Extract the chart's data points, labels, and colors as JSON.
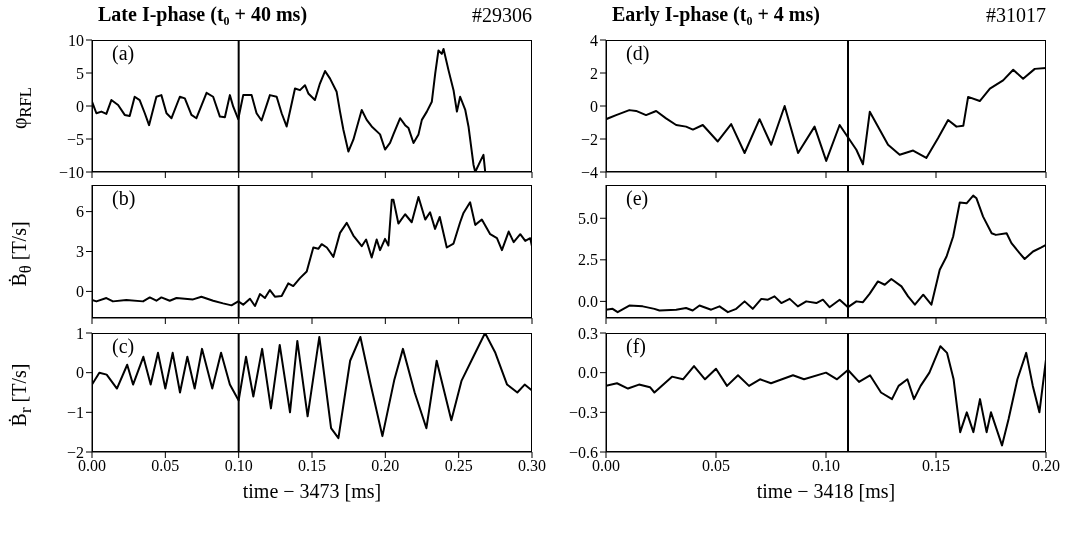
{
  "chart_data": [
    {
      "type": "line",
      "title": "Late I-phase (t₀ + 40 ms)",
      "annotations": [
        "(a)",
        "#29306"
      ],
      "ylabel": "φ$_{RFL}$",
      "tick_labels": "y",
      "xlim": [
        0,
        0.3
      ],
      "xticks": [
        0,
        0.05,
        0.1,
        0.15,
        0.2,
        0.25,
        0.3
      ],
      "ylim": [
        -10,
        10
      ],
      "yticks": [
        {
          "value": -10,
          "label": "−10"
        },
        {
          "value": -5,
          "label": "−5"
        },
        0,
        5,
        10
      ],
      "ref_lines": [
        {
          "axis": "x",
          "value": 0.1,
          "color": "#000000"
        }
      ],
      "x": [
        0,
        0.003,
        0.0064,
        0.0098,
        0.0132,
        0.0178,
        0.0223,
        0.0257,
        0.0291,
        0.0325,
        0.036,
        0.0389,
        0.0439,
        0.0473,
        0.0508,
        0.0542,
        0.0599,
        0.0633,
        0.0678,
        0.0712,
        0.0781,
        0.0826,
        0.0872,
        0.0906,
        0.094,
        0.0963,
        0.0997,
        0.1031,
        0.1088,
        0.1122,
        0.1156,
        0.1213,
        0.1259,
        0.1293,
        0.1327,
        0.1384,
        0.1418,
        0.1452,
        0.1475,
        0.152,
        0.1554,
        0.1589,
        0.1623,
        0.1668,
        0.1691,
        0.1714,
        0.1748,
        0.1782,
        0.1805,
        0.1839,
        0.1873,
        0.1907,
        0.1964,
        0.1998,
        0.2032,
        0.2055,
        0.2101,
        0.2135,
        0.2158,
        0.2192,
        0.2226,
        0.2249,
        0.2283,
        0.2317,
        0.234,
        0.2362,
        0.2385,
        0.2397,
        0.2431,
        0.2465,
        0.2488,
        0.251,
        0.2545,
        0.2567,
        0.2601,
        0.2613,
        0.2647,
        0.2669,
        0.2681
      ],
      "series": [
        {
          "color": "#000000",
          "values": [
            0.65,
            -1.1,
            -0.85,
            -1.2,
            0.9,
            0.15,
            -1.35,
            -1.5,
            1.4,
            0.9,
            -1.1,
            -2.9,
            1.4,
            1.65,
            -1.1,
            -1.85,
            1.4,
            1.15,
            -1.35,
            -1.85,
            2.0,
            1.4,
            -1.6,
            -1.7,
            1.65,
            -0.1,
            -2.0,
            1.65,
            1.65,
            -1.1,
            -2.2,
            1.65,
            1.4,
            -1.1,
            -3.1,
            2.65,
            2.4,
            3.15,
            1.9,
            0.9,
            3.4,
            5.3,
            4.15,
            2.15,
            -0.85,
            -3.6,
            -6.9,
            -5.1,
            -3.3,
            -0.6,
            -2.1,
            -3.1,
            -4.3,
            -6.6,
            -5.6,
            -4.3,
            -1.85,
            -2.9,
            -3.35,
            -5.6,
            -4.3,
            -2.1,
            -0.85,
            0.65,
            4.9,
            8.4,
            7.9,
            8.65,
            5.4,
            2.4,
            -0.85,
            1.4,
            -0.6,
            -3.1,
            -8.9,
            -10,
            -8.4,
            -7.4,
            -10
          ]
        }
      ]
    },
    {
      "type": "line",
      "annotations": [
        "(b)"
      ],
      "ylabel": "Ḃ$_{θ}$ [T/s]",
      "tick_labels": "y",
      "xlim": [
        0,
        0.3
      ],
      "xticks": [
        0,
        0.05,
        0.1,
        0.15,
        0.2,
        0.25,
        0.3
      ],
      "ylim": [
        -2,
        8
      ],
      "yticks": [
        0,
        3,
        6
      ],
      "ref_lines": [
        {
          "axis": "x",
          "value": 0.1,
          "color": "#000000"
        }
      ],
      "x": [
        0,
        0.003,
        0.0098,
        0.0143,
        0.0234,
        0.0348,
        0.0394,
        0.0439,
        0.0473,
        0.053,
        0.0576,
        0.0689,
        0.0746,
        0.0826,
        0.0894,
        0.0951,
        0.0997,
        0.1031,
        0.1077,
        0.1111,
        0.1145,
        0.1179,
        0.1213,
        0.1247,
        0.1293,
        0.1338,
        0.1372,
        0.1418,
        0.1464,
        0.1509,
        0.1543,
        0.1566,
        0.1601,
        0.1646,
        0.1691,
        0.1737,
        0.1782,
        0.1839,
        0.1869,
        0.1907,
        0.1941,
        0.1964,
        0.1998,
        0.2021,
        0.2044,
        0.2055,
        0.2089,
        0.2135,
        0.218,
        0.2226,
        0.2272,
        0.2305,
        0.2339,
        0.2371,
        0.2419,
        0.2465,
        0.251,
        0.2533,
        0.2578,
        0.2613,
        0.2658,
        0.2715,
        0.2761,
        0.2795,
        0.2841,
        0.2875,
        0.292,
        0.2954,
        0.2988,
        0.3
      ],
      "series": [
        {
          "color": "#000000",
          "values": [
            -0.65,
            -0.75,
            -0.5,
            -0.75,
            -0.65,
            -0.75,
            -0.45,
            -0.7,
            -0.45,
            -0.7,
            -0.5,
            -0.6,
            -0.4,
            -0.7,
            -0.9,
            -1.05,
            -0.75,
            -1.0,
            -0.55,
            -1.1,
            -0.2,
            -0.5,
            0.1,
            -0.4,
            -0.35,
            0.6,
            0.4,
            1.0,
            1.5,
            3.3,
            3.2,
            3.55,
            3.3,
            2.6,
            4.4,
            5.15,
            4.2,
            3.4,
            3.9,
            2.55,
            3.9,
            3.1,
            3.95,
            3.45,
            6.9,
            6.9,
            5.1,
            5.8,
            5.2,
            7.1,
            5.4,
            5.95,
            4.7,
            5.6,
            3.3,
            3.6,
            5.2,
            5.9,
            6.7,
            5.0,
            5.4,
            4.3,
            4.0,
            3.1,
            4.5,
            3.7,
            4.3,
            3.8,
            4.0,
            3.4
          ]
        }
      ]
    },
    {
      "type": "line",
      "annotations": [
        "(c)"
      ],
      "ylabel": "Ḃ$_{r}$ [T/s]",
      "xlabel": "time − 3473 [ms]",
      "xlim": [
        0,
        0.3
      ],
      "xticks": [
        {
          "value": 0,
          "label": "0.00"
        },
        {
          "value": 0.05,
          "label": "0.05"
        },
        {
          "value": 0.1,
          "label": "0.10"
        },
        {
          "value": 0.15,
          "label": "0.15"
        },
        {
          "value": 0.2,
          "label": "0.20"
        },
        {
          "value": 0.25,
          "label": "0.25"
        },
        {
          "value": 0.3,
          "label": "0.30"
        }
      ],
      "ylim": [
        -2,
        1
      ],
      "yticks": [
        {
          "value": -2,
          "label": "−2"
        },
        {
          "value": -1,
          "label": "−1"
        },
        0,
        1
      ],
      "ref_lines": [
        {
          "axis": "x",
          "value": 0.1,
          "color": "#000000"
        }
      ],
      "x": [
        0,
        0.005,
        0.01,
        0.017,
        0.024,
        0.028,
        0.035,
        0.04,
        0.045,
        0.05,
        0.055,
        0.06,
        0.065,
        0.07,
        0.075,
        0.082,
        0.088,
        0.094,
        0.1,
        0.105,
        0.11,
        0.116,
        0.122,
        0.128,
        0.135,
        0.14,
        0.147,
        0.155,
        0.163,
        0.168,
        0.176,
        0.183,
        0.19,
        0.198,
        0.206,
        0.212,
        0.22,
        0.228,
        0.235,
        0.245,
        0.252,
        0.26,
        0.268,
        0.275,
        0.283,
        0.29,
        0.295,
        0.3
      ],
      "series": [
        {
          "color": "#000000",
          "values": [
            -0.3,
            0,
            -0.05,
            -0.4,
            0.2,
            -0.3,
            0.4,
            -0.3,
            0.5,
            -0.4,
            0.5,
            -0.5,
            0.4,
            -0.4,
            0.6,
            -0.4,
            0.5,
            -0.3,
            -0.7,
            0.4,
            -0.6,
            0.6,
            -0.9,
            0.7,
            -1.0,
            0.8,
            -1.1,
            0.9,
            -1.4,
            -1.65,
            0.3,
            0.9,
            -0.3,
            -1.6,
            -0.2,
            0.6,
            -0.5,
            -1.4,
            0.3,
            -1.2,
            -0.2,
            0.4,
            1.0,
            0.5,
            -0.3,
            -0.5,
            -0.3,
            -0.45
          ]
        }
      ]
    },
    {
      "type": "line",
      "title": "Early I-phase (t₀ + 4 ms)",
      "annotations": [
        "(d)",
        "#31017"
      ],
      "tick_labels": "y",
      "xlim": [
        0,
        0.2
      ],
      "xticks": [
        0,
        0.05,
        0.1,
        0.15,
        0.2
      ],
      "ylim": [
        -4,
        4
      ],
      "yticks": [
        {
          "value": -4,
          "label": "−4"
        },
        {
          "value": -2,
          "label": "−2"
        },
        0,
        2,
        4
      ],
      "ref_lines": [
        {
          "axis": "x",
          "value": 0.11,
          "color": "#000000"
        }
      ],
      "x": [
        0,
        0.0046,
        0.0106,
        0.0137,
        0.0182,
        0.0228,
        0.0273,
        0.0319,
        0.0364,
        0.0395,
        0.044,
        0.0508,
        0.0569,
        0.063,
        0.0698,
        0.0751,
        0.0812,
        0.0873,
        0.0948,
        0.1001,
        0.1062,
        0.1138,
        0.1168,
        0.1199,
        0.1282,
        0.1335,
        0.1396,
        0.1456,
        0.1509,
        0.1555,
        0.1593,
        0.1624,
        0.1646,
        0.1699,
        0.1745,
        0.1805,
        0.1851,
        0.1896,
        0.1949,
        0.2
      ],
      "series": [
        {
          "color": "#000000",
          "values": [
            -0.8,
            -0.55,
            -0.25,
            -0.3,
            -0.55,
            -0.3,
            -0.75,
            -1.15,
            -1.25,
            -1.43,
            -1.15,
            -2.15,
            -1.1,
            -2.85,
            -0.8,
            -2.35,
            0.0,
            -2.85,
            -1.25,
            -3.33,
            -1.15,
            -2.65,
            -3.53,
            -0.35,
            -2.35,
            -2.95,
            -2.7,
            -3.15,
            -1.95,
            -0.85,
            -1.25,
            -1.2,
            0.55,
            0.3,
            1.05,
            1.55,
            2.2,
            1.65,
            2.25,
            2.3
          ]
        }
      ]
    },
    {
      "type": "line",
      "annotations": [
        "(e)"
      ],
      "tick_labels": "y",
      "xlim": [
        0,
        0.2
      ],
      "xticks": [
        0,
        0.05,
        0.1,
        0.15,
        0.2
      ],
      "ylim": [
        -1,
        7
      ],
      "yticks": [
        {
          "value": 0,
          "label": "0.0"
        },
        2.5,
        {
          "value": 5,
          "label": "5.0"
        }
      ],
      "ref_lines": [
        {
          "axis": "x",
          "value": 0.11,
          "color": "#000000"
        }
      ],
      "x": [
        0,
        0.003,
        0.0053,
        0.0106,
        0.0167,
        0.022,
        0.0243,
        0.0319,
        0.0364,
        0.0394,
        0.0425,
        0.0478,
        0.0516,
        0.0554,
        0.0592,
        0.063,
        0.0667,
        0.0706,
        0.0736,
        0.0766,
        0.0797,
        0.0835,
        0.0872,
        0.091,
        0.0956,
        0.0986,
        0.1016,
        0.1062,
        0.11,
        0.1138,
        0.1168,
        0.1198,
        0.1236,
        0.1267,
        0.1297,
        0.1343,
        0.1373,
        0.1404,
        0.1442,
        0.1479,
        0.1517,
        0.1548,
        0.1578,
        0.1608,
        0.1639,
        0.1669,
        0.1684,
        0.1714,
        0.1753,
        0.1772,
        0.1821,
        0.1843,
        0.188,
        0.1903,
        0.1941,
        0.1979,
        0.2
      ],
      "series": [
        {
          "color": "#000000",
          "values": [
            -0.5,
            -0.45,
            -0.65,
            -0.25,
            -0.3,
            -0.45,
            -0.55,
            -0.5,
            -0.4,
            -0.55,
            -0.25,
            -0.5,
            -0.3,
            -0.65,
            -0.45,
            0.0,
            -0.45,
            0.15,
            0.1,
            0.3,
            -0.1,
            0.15,
            -0.3,
            0.0,
            -0.1,
            0.1,
            -0.35,
            0.1,
            -0.35,
            0.0,
            -0.05,
            0.45,
            1.2,
            1.0,
            1.35,
            0.9,
            0.3,
            -0.2,
            0.4,
            -0.2,
            1.9,
            2.7,
            3.9,
            5.95,
            5.9,
            6.36,
            6.2,
            5.1,
            4.1,
            4.0,
            4.1,
            3.5,
            2.9,
            2.55,
            3.0,
            3.25,
            3.4
          ]
        }
      ]
    },
    {
      "type": "line",
      "annotations": [
        "(f)"
      ],
      "xlabel": "time − 3418 [ms]",
      "xlim": [
        0,
        0.2
      ],
      "xticks": [
        {
          "value": 0,
          "label": "0.00"
        },
        {
          "value": 0.05,
          "label": "0.05"
        },
        {
          "value": 0.1,
          "label": "0.10"
        },
        {
          "value": 0.15,
          "label": "0.15"
        },
        {
          "value": 0.2,
          "label": "0.20"
        }
      ],
      "ylim": [
        -0.6,
        0.3
      ],
      "yticks": [
        {
          "value": -0.6,
          "label": "−0.6"
        },
        {
          "value": -0.3,
          "label": "−0.3"
        },
        {
          "value": 0,
          "label": "0.0"
        },
        {
          "value": 0.3,
          "label": "0.3"
        }
      ],
      "ref_lines": [
        {
          "axis": "x",
          "value": 0.11,
          "color": "#000000"
        }
      ],
      "x": [
        0,
        0.005,
        0.01,
        0.015,
        0.02,
        0.022,
        0.03,
        0.035,
        0.04,
        0.045,
        0.05,
        0.055,
        0.06,
        0.065,
        0.07,
        0.075,
        0.085,
        0.09,
        0.1,
        0.105,
        0.11,
        0.115,
        0.12,
        0.125,
        0.13,
        0.133,
        0.137,
        0.14,
        0.143,
        0.147,
        0.152,
        0.155,
        0.158,
        0.161,
        0.164,
        0.167,
        0.17,
        0.173,
        0.175,
        0.18,
        0.183,
        0.187,
        0.191,
        0.194,
        0.197,
        0.2
      ],
      "series": [
        {
          "color": "#000000",
          "values": [
            -0.1,
            -0.08,
            -0.12,
            -0.09,
            -0.11,
            -0.15,
            -0.03,
            -0.05,
            0.05,
            -0.05,
            0.03,
            -0.1,
            -0.02,
            -0.1,
            -0.05,
            -0.08,
            -0.02,
            -0.05,
            0.0,
            -0.05,
            0.02,
            -0.07,
            -0.02,
            -0.15,
            -0.2,
            -0.1,
            -0.05,
            -0.2,
            -0.1,
            0.0,
            0.2,
            0.15,
            -0.05,
            -0.45,
            -0.3,
            -0.45,
            -0.2,
            -0.45,
            -0.3,
            -0.55,
            -0.35,
            -0.05,
            0.15,
            -0.1,
            -0.3,
            0.1
          ]
        }
      ]
    }
  ]
}
